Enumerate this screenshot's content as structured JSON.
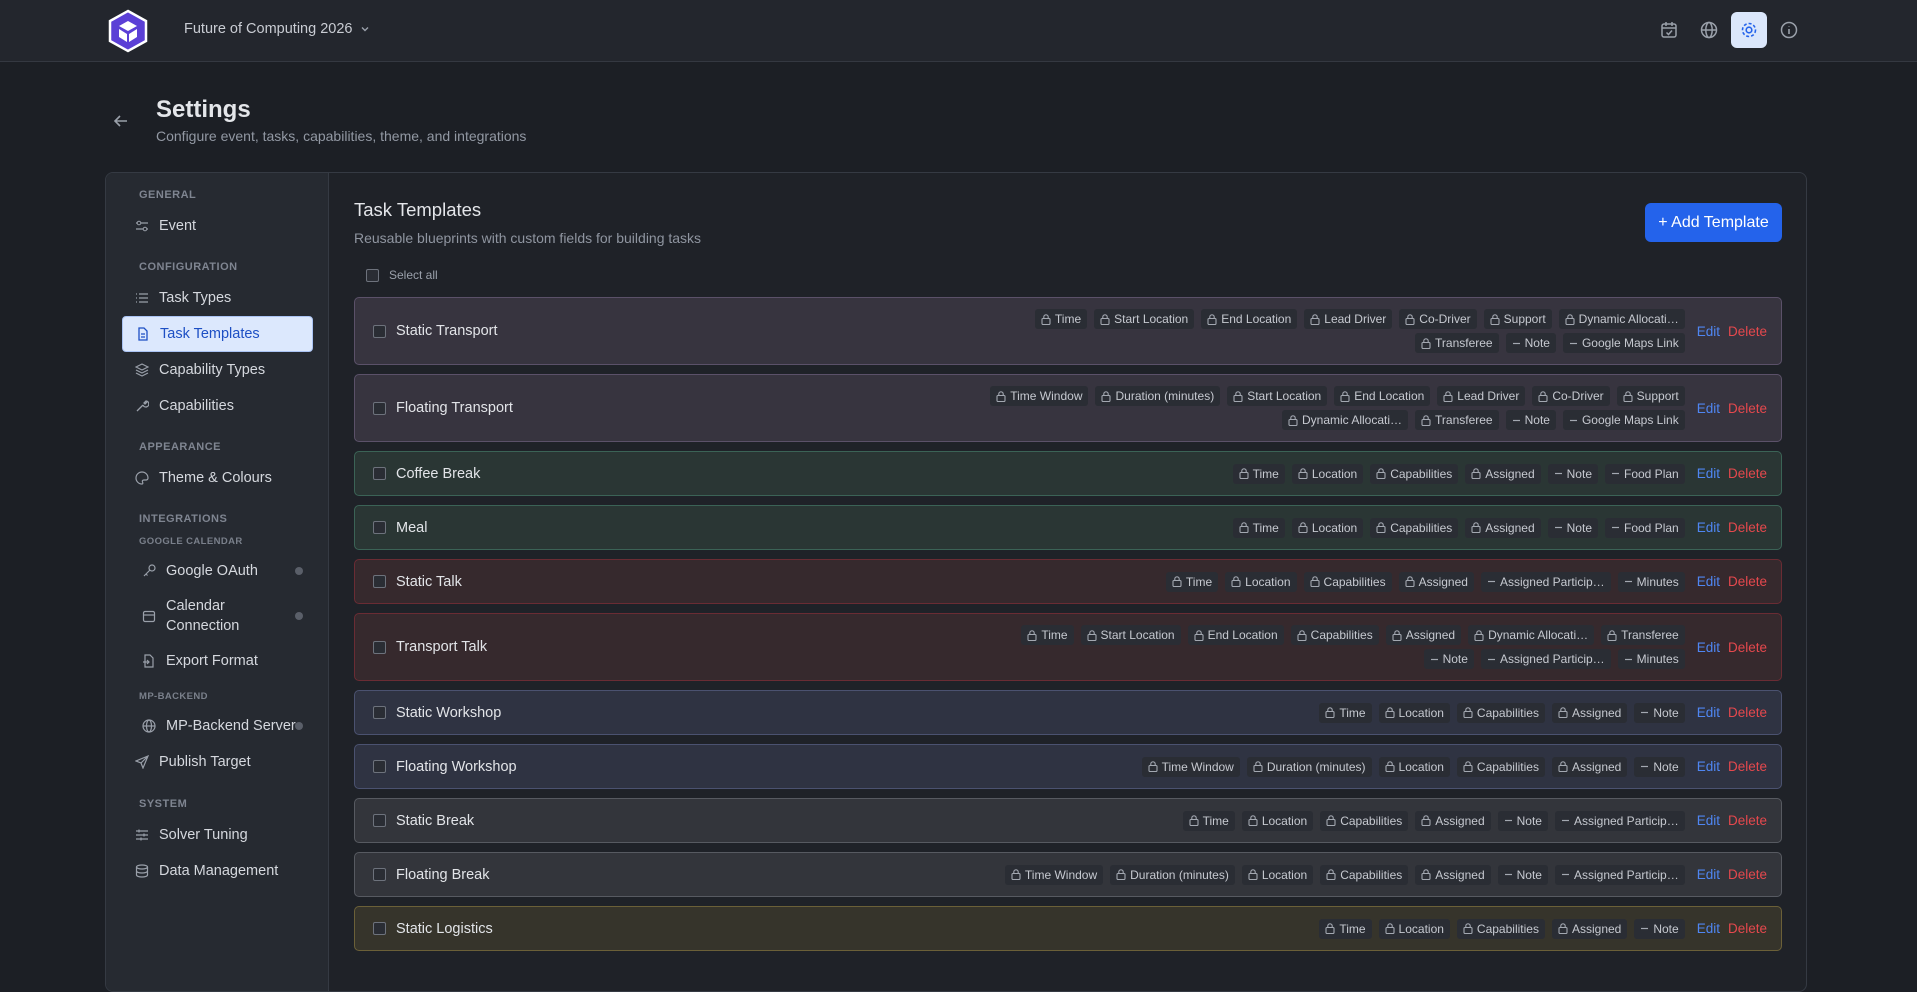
{
  "header": {
    "event_name": "Future of Computing 2026"
  },
  "page": {
    "title": "Settings",
    "subtitle": "Configure event, tasks, capabilities, theme, and integrations"
  },
  "sidebar": {
    "sections": [
      {
        "title": "GENERAL",
        "items": [
          "Event"
        ]
      },
      {
        "title": "CONFIGURATION",
        "items": [
          "Task Types",
          "Task Templates",
          "Capability Types",
          "Capabilities"
        ]
      },
      {
        "title": "APPEARANCE",
        "items": [
          "Theme & Colours"
        ]
      },
      {
        "title": "INTEGRATIONS",
        "groups": [
          {
            "title": "GOOGLE CALENDAR",
            "items": [
              "Google OAuth",
              "Calendar Connection",
              "Export Format"
            ]
          },
          {
            "title": "MP-BACKEND",
            "items": [
              "MP-Backend Server"
            ]
          }
        ],
        "items": [
          "Publish Target"
        ]
      },
      {
        "title": "SYSTEM",
        "items": [
          "Solver Tuning",
          "Data Management"
        ]
      }
    ]
  },
  "panel": {
    "title": "Task Templates",
    "subtitle": "Reusable blueprints with custom fields for building tasks",
    "add_button": "+ Add Template",
    "select_all": "Select all",
    "edit": "Edit",
    "delete": "Delete",
    "templates": [
      {
        "name": "Static Transport",
        "color": "#5b5169",
        "background": "#37343f",
        "fields": [
          {
            "label": "Time",
            "locked": true
          },
          {
            "label": "Start Location",
            "locked": true
          },
          {
            "label": "End Location",
            "locked": true
          },
          {
            "label": "Lead Driver",
            "locked": true
          },
          {
            "label": "Co-Driver",
            "locked": true
          },
          {
            "label": "Support",
            "locked": true
          },
          {
            "label": "Dynamic Allocati…",
            "locked": true
          },
          {
            "label": "Transferee",
            "locked": true
          },
          {
            "label": "Note",
            "locked": false
          },
          {
            "label": "Google Maps Link",
            "locked": false
          }
        ]
      },
      {
        "name": "Floating Transport",
        "color": "#5b5169",
        "background": "#37343f",
        "fields": [
          {
            "label": "Time Window",
            "locked": true
          },
          {
            "label": "Duration (minutes)",
            "locked": true
          },
          {
            "label": "Start Location",
            "locked": true
          },
          {
            "label": "End Location",
            "locked": true
          },
          {
            "label": "Lead Driver",
            "locked": true
          },
          {
            "label": "Co-Driver",
            "locked": true
          },
          {
            "label": "Support",
            "locked": true
          },
          {
            "label": "Dynamic Allocati…",
            "locked": true
          },
          {
            "label": "Transferee",
            "locked": true
          },
          {
            "label": "Note",
            "locked": false
          },
          {
            "label": "Google Maps Link",
            "locked": false
          }
        ]
      },
      {
        "name": "Coffee Break",
        "color": "#3b6356",
        "background": "#2a3634",
        "fields": [
          {
            "label": "Time",
            "locked": true
          },
          {
            "label": "Location",
            "locked": true
          },
          {
            "label": "Capabilities",
            "locked": true
          },
          {
            "label": "Assigned",
            "locked": true
          },
          {
            "label": "Note",
            "locked": false
          },
          {
            "label": "Food Plan",
            "locked": false
          }
        ]
      },
      {
        "name": "Meal",
        "color": "#3b6356",
        "background": "#2a3634",
        "fields": [
          {
            "label": "Time",
            "locked": true
          },
          {
            "label": "Location",
            "locked": true
          },
          {
            "label": "Capabilities",
            "locked": true
          },
          {
            "label": "Assigned",
            "locked": true
          },
          {
            "label": "Note",
            "locked": false
          },
          {
            "label": "Food Plan",
            "locked": false
          }
        ]
      },
      {
        "name": "Static Talk",
        "color": "#6a2c34",
        "background": "#36292d",
        "fields": [
          {
            "label": "Time",
            "locked": true
          },
          {
            "label": "Location",
            "locked": true
          },
          {
            "label": "Capabilities",
            "locked": true
          },
          {
            "label": "Assigned",
            "locked": true
          },
          {
            "label": "Assigned Particip…",
            "locked": false
          },
          {
            "label": "Minutes",
            "locked": false
          }
        ]
      },
      {
        "name": "Transport Talk",
        "color": "#6a2c34",
        "background": "#36292d",
        "fields": [
          {
            "label": "Time",
            "locked": true
          },
          {
            "label": "Start Location",
            "locked": true
          },
          {
            "label": "End Location",
            "locked": true
          },
          {
            "label": "Capabilities",
            "locked": true
          },
          {
            "label": "Assigned",
            "locked": true
          },
          {
            "label": "Dynamic Allocati…",
            "locked": true
          },
          {
            "label": "Transferee",
            "locked": true
          },
          {
            "label": "Note",
            "locked": false
          },
          {
            "label": "Assigned Particip…",
            "locked": false
          },
          {
            "label": "Minutes",
            "locked": false
          }
        ]
      },
      {
        "name": "Static Workshop",
        "color": "#4b5270",
        "background": "#2f3342",
        "fields": [
          {
            "label": "Time",
            "locked": true
          },
          {
            "label": "Location",
            "locked": true
          },
          {
            "label": "Capabilities",
            "locked": true
          },
          {
            "label": "Assigned",
            "locked": true
          },
          {
            "label": "Note",
            "locked": false
          }
        ]
      },
      {
        "name": "Floating Workshop",
        "color": "#4b5270",
        "background": "#2f3342",
        "fields": [
          {
            "label": "Time Window",
            "locked": true
          },
          {
            "label": "Duration (minutes)",
            "locked": true
          },
          {
            "label": "Location",
            "locked": true
          },
          {
            "label": "Capabilities",
            "locked": true
          },
          {
            "label": "Assigned",
            "locked": true
          },
          {
            "label": "Note",
            "locked": false
          }
        ]
      },
      {
        "name": "Static Break",
        "color": "#575a61",
        "background": "#33353b",
        "fields": [
          {
            "label": "Time",
            "locked": true
          },
          {
            "label": "Location",
            "locked": true
          },
          {
            "label": "Capabilities",
            "locked": true
          },
          {
            "label": "Assigned",
            "locked": true
          },
          {
            "label": "Note",
            "locked": false
          },
          {
            "label": "Assigned Particip…",
            "locked": false
          }
        ]
      },
      {
        "name": "Floating Break",
        "color": "#575a61",
        "background": "#33353b",
        "fields": [
          {
            "label": "Time Window",
            "locked": true
          },
          {
            "label": "Duration (minutes)",
            "locked": true
          },
          {
            "label": "Location",
            "locked": true
          },
          {
            "label": "Capabilities",
            "locked": true
          },
          {
            "label": "Assigned",
            "locked": true
          },
          {
            "label": "Note",
            "locked": false
          },
          {
            "label": "Assigned Particip…",
            "locked": false
          }
        ]
      },
      {
        "name": "Static Logistics",
        "color": "#6b6038",
        "background": "#36342b",
        "fields": [
          {
            "label": "Time",
            "locked": true
          },
          {
            "label": "Location",
            "locked": true
          },
          {
            "label": "Capabilities",
            "locked": true
          },
          {
            "label": "Assigned",
            "locked": true
          },
          {
            "label": "Note",
            "locked": false
          }
        ]
      }
    ]
  }
}
